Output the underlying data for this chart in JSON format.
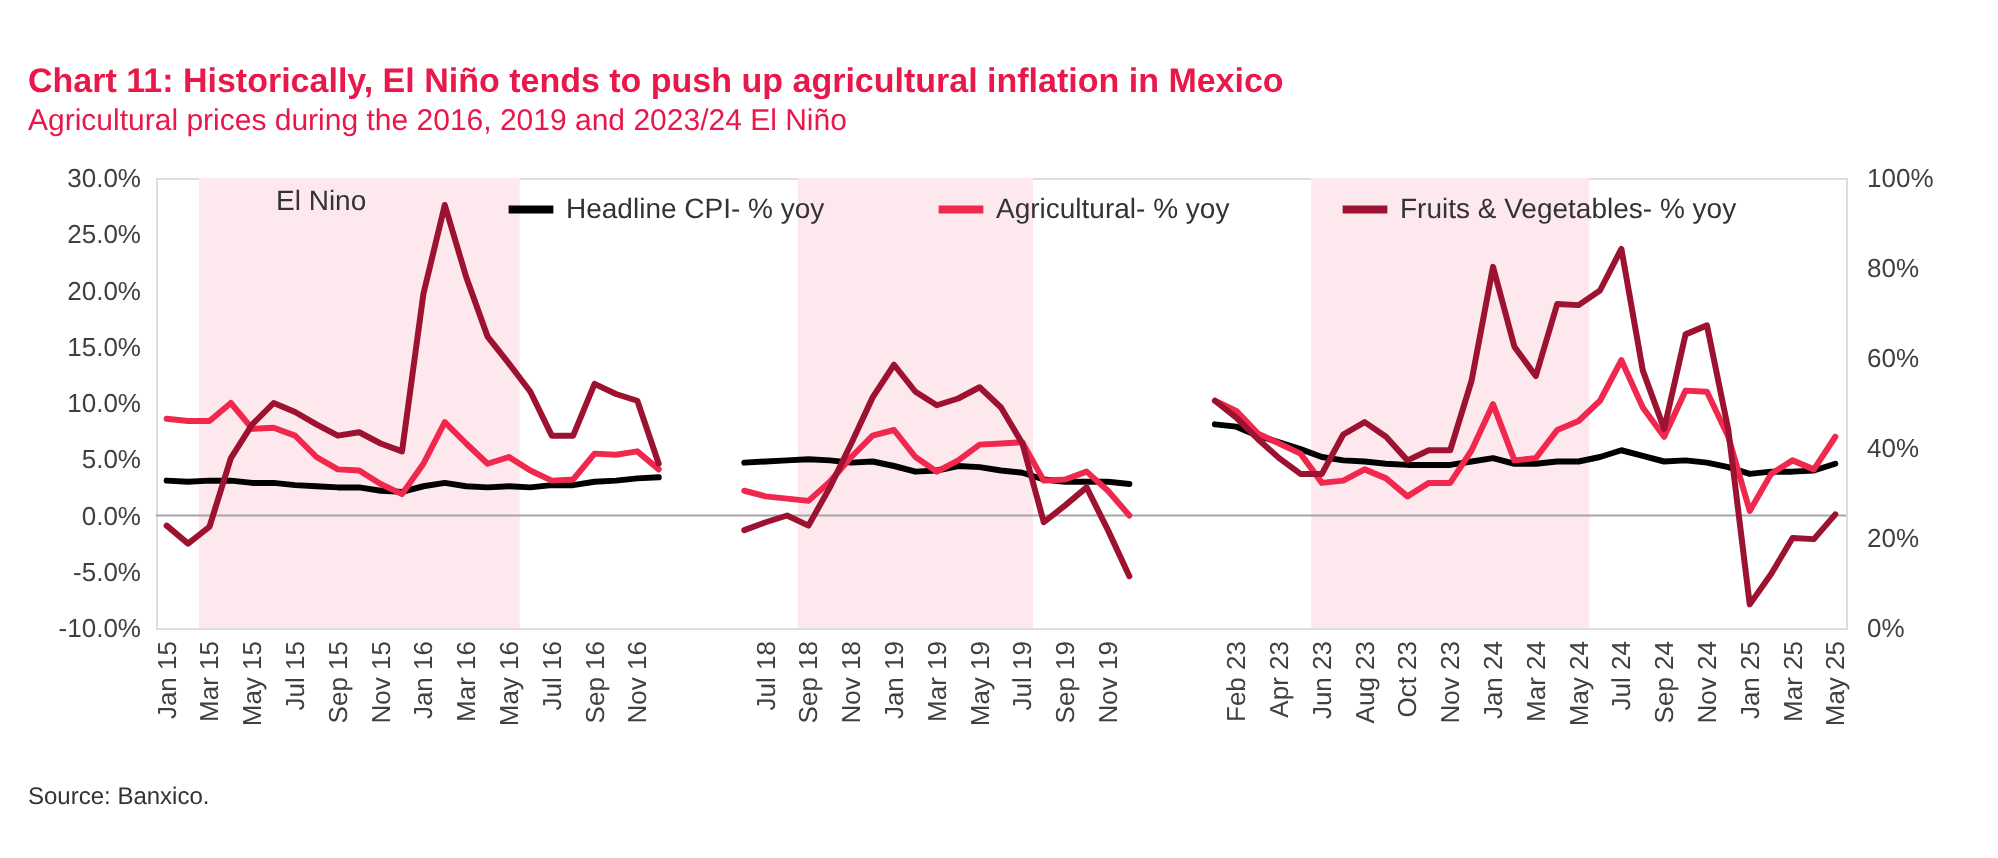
{
  "chart_data": {
    "type": "line",
    "title": "Chart 11: Historically, El Niño tends to push up agricultural inflation in Mexico",
    "subtitle": "Agricultural prices during the 2016, 2019 and 2023/24 El Niño",
    "categories": [
      "Jan 15",
      null,
      "Mar 15",
      null,
      "May 15",
      null,
      "Jul 15",
      null,
      "Sep 15",
      null,
      "Nov 15",
      null,
      "Jan 16",
      null,
      "Mar 16",
      null,
      "May 16",
      null,
      "Jul 16",
      null,
      "Sep 16",
      null,
      "Nov 16",
      null,
      null,
      null,
      null,
      null,
      "Jul 18",
      null,
      "Sep 18",
      null,
      "Nov 18",
      null,
      "Jan 19",
      null,
      "Mar 19",
      null,
      "May 19",
      null,
      "Jul 19",
      null,
      "Sep 19",
      null,
      "Nov 19",
      null,
      null,
      null,
      null,
      null,
      "Feb 23",
      null,
      "Apr 23",
      null,
      "Jun 23",
      null,
      "Aug 23",
      null,
      "Oct 23",
      null,
      "Nov 23",
      null,
      "Jan 24",
      null,
      "Mar 24",
      null,
      "May 24",
      null,
      "Jul 24",
      null,
      "Sep 24",
      null,
      "Nov 24",
      null,
      "Jan 25",
      null,
      "Mar 25",
      null,
      "May 25"
    ],
    "series": [
      {
        "name": "Headline CPI- % yoy",
        "color": "#000000",
        "values": [
          3.1,
          3.0,
          3.1,
          3.1,
          2.9,
          2.9,
          2.7,
          2.6,
          2.5,
          2.5,
          2.2,
          2.1,
          2.6,
          2.9,
          2.6,
          2.5,
          2.6,
          2.5,
          2.7,
          2.7,
          3.0,
          3.1,
          3.3,
          3.4,
          null,
          null,
          null,
          4.7,
          4.8,
          4.9,
          5.0,
          4.9,
          4.7,
          4.8,
          4.4,
          3.9,
          4.0,
          4.4,
          4.3,
          4.0,
          3.8,
          3.2,
          3.0,
          3.0,
          3.0,
          2.8,
          null,
          null,
          null,
          8.1,
          7.9,
          7.1,
          6.5,
          5.9,
          5.2,
          4.9,
          4.8,
          4.6,
          4.5,
          4.5,
          4.5,
          4.8,
          5.1,
          4.6,
          4.6,
          4.8,
          4.8,
          5.2,
          5.8,
          5.3,
          4.8,
          4.9,
          4.7,
          4.3,
          3.7,
          3.9,
          3.9,
          4.0,
          4.6
        ]
      },
      {
        "name": "Agricultural- % yoy",
        "color": "#f0284e",
        "values": [
          8.6,
          8.4,
          8.4,
          10.0,
          7.7,
          7.8,
          7.1,
          5.2,
          4.1,
          4.0,
          2.8,
          1.9,
          4.6,
          8.3,
          6.4,
          4.6,
          5.2,
          4.0,
          3.1,
          3.2,
          5.5,
          5.4,
          5.7,
          4.1,
          null,
          null,
          null,
          2.2,
          1.7,
          1.5,
          1.3,
          3.0,
          5.2,
          7.1,
          7.6,
          5.2,
          3.9,
          4.9,
          6.3,
          6.4,
          6.5,
          3.1,
          3.2,
          3.9,
          2.2,
          0.0,
          null,
          null,
          null,
          10.2,
          9.3,
          7.3,
          6.4,
          5.5,
          2.9,
          3.1,
          4.1,
          3.3,
          1.7,
          2.9,
          2.9,
          5.8,
          9.9,
          4.9,
          5.1,
          7.6,
          8.4,
          10.2,
          13.8,
          9.6,
          7.0,
          11.1,
          11.0,
          7.0,
          0.4,
          3.7,
          4.9,
          4.1,
          7.0
        ]
      },
      {
        "name": "Fruits & Vegetables- % yoy",
        "color": "#9c1230",
        "values": [
          -0.9,
          -2.5,
          -1.0,
          5.1,
          8.1,
          10.0,
          9.2,
          8.1,
          7.1,
          7.4,
          6.4,
          5.7,
          19.7,
          27.6,
          21.2,
          15.9,
          13.5,
          11.0,
          7.1,
          7.1,
          11.7,
          10.8,
          10.2,
          4.6,
          null,
          null,
          null,
          -1.3,
          -0.6,
          0.0,
          -0.9,
          2.5,
          6.4,
          10.5,
          13.4,
          11.0,
          9.8,
          10.4,
          11.4,
          9.6,
          6.4,
          -0.6,
          0.9,
          2.5,
          -1.3,
          -5.4,
          null,
          null,
          null,
          10.2,
          8.7,
          6.8,
          5.1,
          3.7,
          3.7,
          7.2,
          8.3,
          7.0,
          4.9,
          5.8,
          5.8,
          12.0,
          22.1,
          15.0,
          12.4,
          18.8,
          18.7,
          20.0,
          23.7,
          12.9,
          7.7,
          16.1,
          16.9,
          7.6,
          -7.9,
          -5.2,
          -2.0,
          -2.1,
          0.1
        ]
      }
    ],
    "ylim": [
      -10,
      30
    ],
    "yticks": [
      {
        "value": -10,
        "label": "-10.0%"
      },
      {
        "value": -5,
        "label": "-5.0%"
      },
      {
        "value": 0,
        "label": "0.0%"
      },
      {
        "value": 5,
        "label": "5.0%"
      },
      {
        "value": 10,
        "label": "10.0%"
      },
      {
        "value": 15,
        "label": "15.0%"
      },
      {
        "value": 20,
        "label": "20.0%"
      },
      {
        "value": 25,
        "label": "25.0%"
      },
      {
        "value": 30,
        "label": "30.0%"
      }
    ],
    "y2lim": [
      0,
      100
    ],
    "y2ticks": [
      {
        "value": 0,
        "label": "0%"
      },
      {
        "value": 20,
        "label": "20%"
      },
      {
        "value": 40,
        "label": "40%"
      },
      {
        "value": 60,
        "label": "60%"
      },
      {
        "value": 80,
        "label": "80%"
      },
      {
        "value": 100,
        "label": "100%"
      }
    ],
    "bands": [
      {
        "axis": "x",
        "from": "Mar 15",
        "to": "May 16",
        "label": "El Nino",
        "color": "#fde8ed"
      },
      {
        "axis": "x",
        "from": "Sep 18",
        "to": "Jul 19",
        "color": "#fde8ed"
      },
      {
        "axis": "x",
        "from": "Jun 23",
        "to": "May 24",
        "color": "#fde8ed"
      }
    ],
    "ref_lines": [
      {
        "axis": "y",
        "value": 0,
        "color": "#a6a6a6"
      }
    ],
    "legend": "top",
    "grid": false,
    "marker": "none",
    "line_style": "solid",
    "annotations": [
      "Source: Banxico."
    ]
  }
}
